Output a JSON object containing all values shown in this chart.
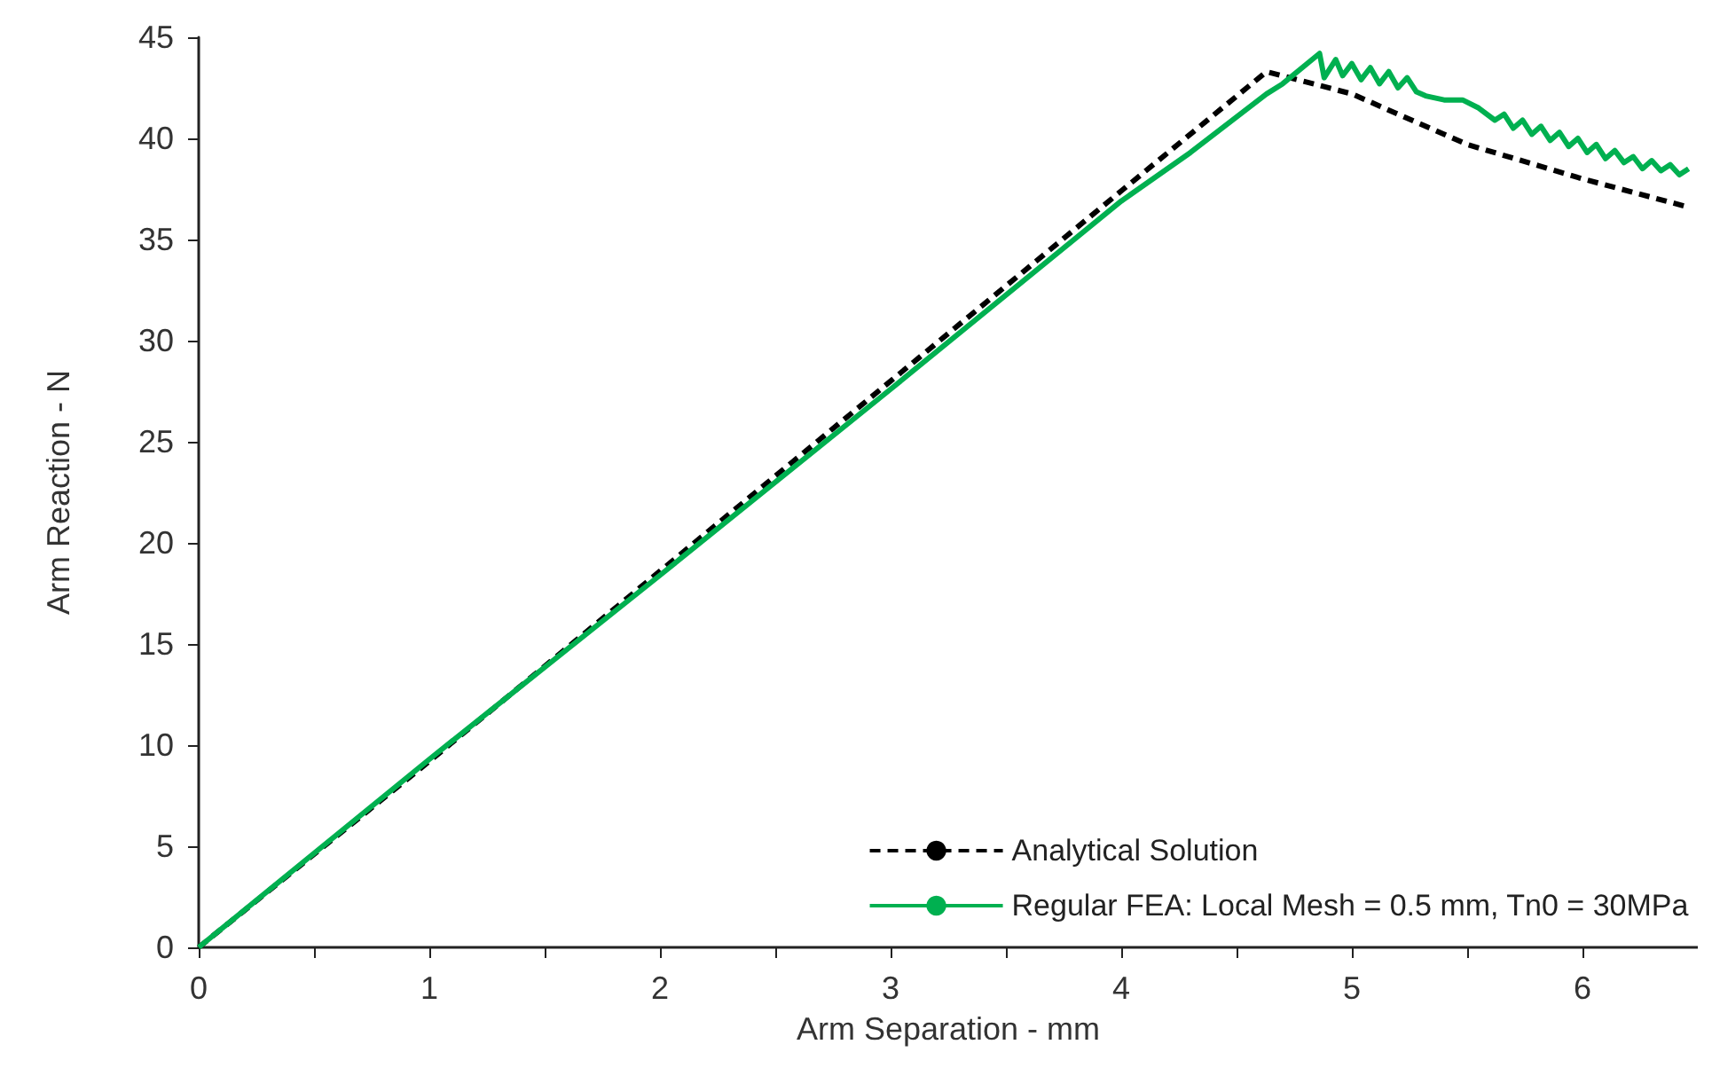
{
  "chart_data": {
    "type": "line",
    "xlabel": "Arm Separation - mm",
    "ylabel": "Arm Reaction - N",
    "xlim": [
      0,
      6.5
    ],
    "ylim": [
      0,
      45
    ],
    "xticks": [
      0,
      {
        "value": 0.5,
        "label": null
      },
      1,
      {
        "value": 1.5,
        "label": null
      },
      2,
      {
        "value": 2.5,
        "label": null
      },
      3,
      {
        "value": 3.5,
        "label": null
      },
      4,
      {
        "value": 4.5,
        "label": null
      },
      5,
      {
        "value": 5.5,
        "label": null
      },
      6
    ],
    "yticks": [
      0,
      5,
      10,
      15,
      20,
      25,
      30,
      35,
      40,
      45
    ],
    "grid": false,
    "legend": "bottom right",
    "marker": "none",
    "series": [
      {
        "name": "Analytical Solution",
        "color": "#000000",
        "line_style": "dashed",
        "x": [
          0,
          1,
          2,
          3,
          4,
          4.63,
          5,
          5.5,
          6,
          6.46
        ],
        "values": [
          0,
          9.2,
          18.6,
          28,
          37.4,
          43.3,
          42.2,
          39.7,
          38.0,
          36.6
        ]
      },
      {
        "name": "Regular FEA: Local Mesh = 0.5 mm, Tn0 = 30MPa",
        "color": "#00b050",
        "line_style": "solid",
        "x": [
          0,
          1,
          2,
          3,
          4,
          4.3,
          4.63,
          4.7,
          4.86,
          4.88,
          4.93,
          4.96,
          5.0,
          5.04,
          5.08,
          5.12,
          5.16,
          5.2,
          5.24,
          5.28,
          5.32,
          5.4,
          5.48,
          5.55,
          5.62,
          5.66,
          5.7,
          5.74,
          5.78,
          5.82,
          5.86,
          5.9,
          5.94,
          5.98,
          6.02,
          6.06,
          6.1,
          6.14,
          6.18,
          6.22,
          6.26,
          6.3,
          6.34,
          6.38,
          6.42,
          6.46
        ],
        "values": [
          0,
          9.3,
          18.4,
          27.6,
          36.9,
          39.3,
          42.2,
          42.7,
          44.2,
          43.0,
          43.9,
          43.1,
          43.7,
          42.9,
          43.5,
          42.7,
          43.3,
          42.5,
          43.0,
          42.3,
          42.1,
          41.9,
          41.9,
          41.5,
          40.9,
          41.2,
          40.5,
          40.9,
          40.2,
          40.6,
          39.9,
          40.3,
          39.6,
          40.0,
          39.3,
          39.7,
          39.0,
          39.4,
          38.8,
          39.1,
          38.5,
          38.9,
          38.4,
          38.7,
          38.2,
          38.5
        ]
      }
    ]
  }
}
